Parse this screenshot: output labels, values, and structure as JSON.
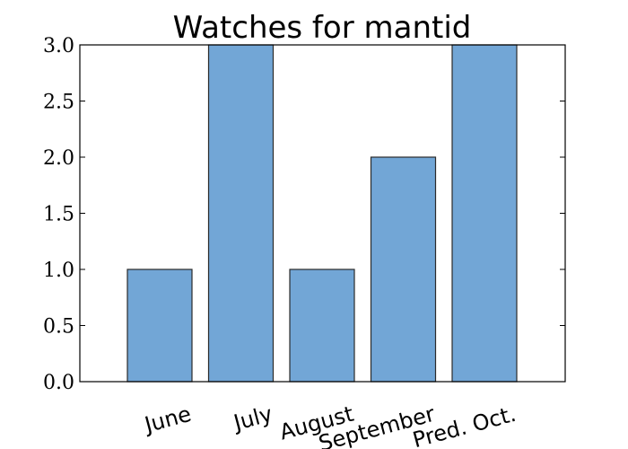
{
  "chart_data": {
    "type": "bar",
    "title": "Watches for mantid",
    "xlabel": "",
    "ylabel": "",
    "categories": [
      "June",
      "July",
      "August",
      "September",
      "Pred. Oct."
    ],
    "values": [
      1,
      3,
      1,
      2,
      3
    ],
    "ylim": [
      0,
      3
    ],
    "yticks": [
      "0.0",
      "0.5",
      "1.0",
      "1.5",
      "2.0",
      "2.5",
      "3.0"
    ],
    "bar_color": "#72a6d6",
    "edge_color": "#2b2b2b",
    "grid": false,
    "legend": "none"
  }
}
